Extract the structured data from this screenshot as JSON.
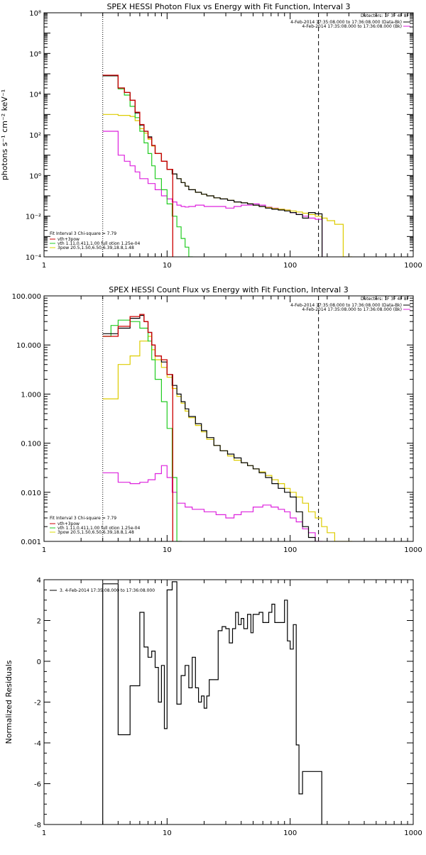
{
  "chart_data": [
    {
      "type": "line",
      "title": "SPEX HESSI Photon Flux vs Energy with Fit Function, Interval 3",
      "ylabel": "photons s⁻¹ cm⁻² keV⁻¹",
      "xscale": "log",
      "yscale": "log",
      "xlim": [
        1,
        1000
      ],
      "ylim": [
        0.0001,
        100000000
      ],
      "xticks": [
        1,
        10,
        100,
        1000
      ],
      "xtick_labels": [
        "1",
        "10",
        "100",
        "1000"
      ],
      "yticks": [
        0.0001,
        0.01,
        1,
        100,
        10000,
        1000000,
        100000000
      ],
      "ytick_labels": [
        "10⁻⁴",
        "10⁻²",
        "10⁰",
        "10²",
        "10⁴",
        "10⁶",
        "10⁸"
      ],
      "header": {
        "detectors": "Detectors: 1F 3F 4F 8F",
        "lines": [
          {
            "text": "4-Feb-2014 17:35:08.000 to 17:36:08.000 (Data-Bk)",
            "color": "#000000"
          },
          {
            "text": "4-Feb-2014 17:35:08.000 to 17:36:08.000 (Bk)",
            "color": "#dd22dd"
          }
        ]
      },
      "legend": {
        "title": "Fit Interval 3   Chi-square = 7.79",
        "entries": [
          {
            "text": "vth+3pow",
            "color": "#cc0000"
          },
          {
            "text": "vth 1.11,0.411,1.00  full otion 1.25e-04",
            "color": "#22cc22"
          },
          {
            "text": "3pow 20.5,1.50,6.50,6.39,18.8,1.48",
            "color": "#dddd00"
          }
        ]
      },
      "vlines": [
        {
          "x": 3,
          "style": "dotted",
          "color": "#000000"
        },
        {
          "x": 170,
          "style": "dashed",
          "color": "#000000"
        }
      ],
      "series": [
        {
          "role": "data",
          "color": "#000000",
          "step": true,
          "x": [
            3,
            3.5,
            4,
            4.5,
            5,
            5.5,
            6,
            6.5,
            7,
            7.5,
            8,
            9,
            10,
            11,
            12,
            13,
            14,
            15,
            17,
            19,
            21,
            24,
            27,
            31,
            35,
            40,
            45,
            50,
            56,
            63,
            71,
            80,
            90,
            100,
            112,
            126,
            141,
            160
          ],
          "y": [
            80000,
            80000,
            20000,
            12000,
            5000,
            1200,
            300,
            150,
            80,
            30,
            12,
            5,
            2,
            1.2,
            0.7,
            0.45,
            0.3,
            0.2,
            0.15,
            0.12,
            0.1,
            0.08,
            0.07,
            0.06,
            0.05,
            0.045,
            0.04,
            0.035,
            0.03,
            0.025,
            0.022,
            0.02,
            0.018,
            0.015,
            0.012,
            0.008,
            0.015,
            0.013
          ]
        },
        {
          "role": "fit-total",
          "name": "vth+3pow",
          "color": "#cc0000",
          "step": true,
          "x": [
            3,
            3.5,
            4,
            4.5,
            5,
            5.5,
            6,
            6.5,
            7,
            7.5,
            8,
            9,
            10
          ],
          "y": [
            85000,
            85000,
            20000,
            12000,
            5000,
            1300,
            320,
            150,
            70,
            30,
            12,
            5,
            2
          ]
        },
        {
          "role": "fit-thermal",
          "name": "vth",
          "color": "#22cc22",
          "step": true,
          "x": [
            3,
            3.5,
            4,
            4.5,
            5,
            5.5,
            6,
            6.5,
            7,
            7.5,
            8,
            9,
            10,
            11,
            12,
            13,
            14,
            15
          ],
          "y": [
            80000,
            80000,
            18000,
            9000,
            2500,
            700,
            150,
            40,
            12,
            3,
            0.7,
            0.2,
            0.04,
            0.01,
            0.003,
            0.0008,
            0.0003,
            0.0001
          ]
        },
        {
          "role": "fit-nonthermal",
          "name": "3pow",
          "color": "#ddcc00",
          "step": true,
          "x": [
            3,
            4,
            5,
            5.5,
            6,
            6.5,
            7,
            7.5,
            8,
            9,
            10,
            11,
            12,
            13,
            14,
            15,
            17,
            19,
            21,
            24,
            27,
            31,
            35,
            40,
            45,
            50,
            56,
            63,
            71,
            80,
            90,
            100,
            112,
            126,
            141,
            160,
            180,
            200,
            230,
            270
          ],
          "y": [
            1000,
            900,
            800,
            500,
            200,
            120,
            60,
            28,
            12,
            5,
            2,
            1.2,
            0.7,
            0.45,
            0.3,
            0.2,
            0.15,
            0.12,
            0.1,
            0.08,
            0.07,
            0.06,
            0.05,
            0.045,
            0.04,
            0.035,
            0.03,
            0.027,
            0.024,
            0.022,
            0.02,
            0.018,
            0.016,
            0.014,
            0.012,
            0.01,
            0.008,
            0.006,
            0.004,
            0.0001
          ]
        },
        {
          "role": "background",
          "color": "#dd22dd",
          "step": true,
          "x": [
            3,
            3.5,
            4,
            4.5,
            5,
            5.5,
            6,
            7,
            8,
            9,
            10,
            11,
            12,
            13,
            14,
            15,
            17,
            20,
            25,
            30,
            35,
            40,
            50,
            56,
            63,
            71,
            80,
            90,
            100,
            112,
            126,
            141,
            160
          ],
          "y": [
            150,
            150,
            10,
            5,
            3,
            1.5,
            0.7,
            0.4,
            0.2,
            0.1,
            0.07,
            0.05,
            0.035,
            0.03,
            0.028,
            0.03,
            0.035,
            0.03,
            0.03,
            0.025,
            0.03,
            0.035,
            0.04,
            0.035,
            0.028,
            0.025,
            0.022,
            0.02,
            0.015,
            0.012,
            0.01,
            0.008,
            0.007
          ]
        }
      ]
    },
    {
      "type": "line",
      "title": "SPEX HESSI Count Flux vs Energy with Fit Function, Interval 3",
      "ylabel": "",
      "xscale": "log",
      "yscale": "log",
      "xlim": [
        1,
        1000
      ],
      "ylim": [
        0.001,
        100
      ],
      "xticks": [
        1,
        10,
        100,
        1000
      ],
      "xtick_labels": [
        "1",
        "10",
        "100",
        "1000"
      ],
      "yticks": [
        0.001,
        0.01,
        0.1,
        1,
        10,
        100
      ],
      "ytick_labels": [
        "0.001",
        "0.010",
        "0.100",
        "1.000",
        "10.000",
        "100.000"
      ],
      "header": {
        "detectors": "Detectors: 1F 3F 4F 8F",
        "lines": [
          {
            "text": "4-Feb-2014 17:35:08.000 to 17:36:08.000 (Data-Bk)",
            "color": "#000000"
          },
          {
            "text": "4-Feb-2014 17:35:08.000 to 17:36:08.000 (Bk)",
            "color": "#dd22dd"
          }
        ]
      },
      "legend": {
        "title": "Fit Interval 3   Chi-square = 7.79",
        "entries": [
          {
            "text": "vth+3pow",
            "color": "#cc0000"
          },
          {
            "text": "vth 1.11,0.411,1.00  full otion 1.25e-04",
            "color": "#22cc22"
          },
          {
            "text": "3pow 20.5,1.50,6.50,6.39,18.8,1.48",
            "color": "#dddd00"
          }
        ]
      },
      "vlines": [
        {
          "x": 3,
          "style": "dotted",
          "color": "#000000"
        },
        {
          "x": 170,
          "style": "dashed",
          "color": "#000000"
        }
      ],
      "series": [
        {
          "role": "data",
          "color": "#000000",
          "step": true,
          "x": [
            3,
            4,
            5,
            6,
            6.5,
            7,
            7.5,
            8,
            9,
            10,
            11,
            12,
            13,
            14,
            15,
            17,
            19,
            21,
            24,
            27,
            31,
            35,
            40,
            45,
            50,
            56,
            63,
            71,
            80,
            90,
            100,
            112,
            126,
            141,
            160
          ],
          "y": [
            17,
            22,
            35,
            40,
            30,
            18,
            10,
            6,
            4.5,
            2.5,
            1.5,
            1,
            0.7,
            0.5,
            0.35,
            0.25,
            0.18,
            0.13,
            0.09,
            0.07,
            0.06,
            0.05,
            0.04,
            0.035,
            0.03,
            0.025,
            0.02,
            0.015,
            0.012,
            0.01,
            0.008,
            0.004,
            0.002,
            0.0012,
            0.0008
          ]
        },
        {
          "role": "fit-total",
          "name": "vth+3pow",
          "color": "#cc0000",
          "step": true,
          "x": [
            3,
            4,
            5,
            6,
            6.5,
            7,
            7.5,
            8,
            9,
            10
          ],
          "y": [
            15,
            24,
            38,
            42,
            30,
            18,
            10,
            6,
            5,
            2.5
          ]
        },
        {
          "role": "fit-thermal",
          "name": "vth",
          "color": "#22cc22",
          "step": true,
          "x": [
            3,
            3.5,
            4,
            5,
            6,
            7,
            7.5,
            8,
            9,
            10,
            11,
            12
          ],
          "y": [
            15,
            25,
            32,
            30,
            22,
            12,
            5,
            2,
            0.7,
            0.2,
            0.02,
            0.001
          ]
        },
        {
          "role": "fit-nonthermal",
          "name": "3pow",
          "color": "#ddcc00",
          "step": true,
          "x": [
            3,
            4,
            5,
            6,
            7,
            7.5,
            8,
            9,
            10,
            11,
            12,
            13,
            14,
            15,
            17,
            19,
            21,
            24,
            27,
            31,
            35,
            40,
            45,
            50,
            56,
            63,
            71,
            80,
            90,
            100,
            112,
            126,
            141,
            160,
            180,
            200,
            230,
            270
          ],
          "y": [
            0.8,
            4,
            6,
            12,
            15,
            8,
            5,
            3.5,
            2.2,
            1.3,
            0.9,
            0.65,
            0.45,
            0.33,
            0.23,
            0.17,
            0.12,
            0.09,
            0.07,
            0.055,
            0.045,
            0.04,
            0.035,
            0.03,
            0.026,
            0.022,
            0.018,
            0.015,
            0.012,
            0.01,
            0.008,
            0.006,
            0.004,
            0.003,
            0.002,
            0.0015,
            0.001,
            0.001
          ]
        },
        {
          "role": "background",
          "color": "#dd22dd",
          "step": true,
          "x": [
            3,
            4,
            5,
            6,
            7,
            8,
            9,
            10,
            11,
            12,
            14,
            16,
            20,
            25,
            30,
            35,
            40,
            50,
            60,
            70,
            80,
            90,
            100,
            112,
            126,
            141,
            160
          ],
          "y": [
            0.025,
            0.016,
            0.015,
            0.016,
            0.018,
            0.024,
            0.035,
            0.02,
            0.01,
            0.006,
            0.005,
            0.0045,
            0.004,
            0.0035,
            0.003,
            0.0035,
            0.004,
            0.005,
            0.0055,
            0.005,
            0.0045,
            0.004,
            0.003,
            0.0025,
            0.0018,
            0.0015,
            0.001
          ]
        }
      ]
    },
    {
      "type": "line",
      "title": "",
      "ylabel": "Normalized Residuals",
      "xscale": "log",
      "yscale": "linear",
      "xlim": [
        1,
        1000
      ],
      "ylim": [
        -8,
        4
      ],
      "xticks": [
        1,
        10,
        100,
        1000
      ],
      "xtick_labels": [
        "1",
        "10",
        "100",
        "1000"
      ],
      "yticks": [
        -8,
        -6,
        -4,
        -2,
        0,
        2,
        4
      ],
      "ytick_labels": [
        "-8",
        "-6",
        "-4",
        "-2",
        "0",
        "2",
        "4"
      ],
      "legend": {
        "title": "",
        "entries": [
          {
            "text": "3.  4-Feb-2014  17:35:08.000 to 17:36:08.000",
            "color": "#000000"
          }
        ]
      },
      "series": [
        {
          "role": "residuals",
          "color": "#000000",
          "step": true,
          "x": [
            3,
            3.5,
            4,
            4.5,
            5,
            5.5,
            6,
            6.5,
            7,
            7.5,
            8,
            8.5,
            9,
            9.5,
            10,
            11,
            12,
            13,
            14,
            15,
            16,
            17,
            18,
            19,
            20,
            21,
            22,
            24,
            26,
            28,
            30,
            32,
            34,
            36,
            38,
            40,
            42,
            45,
            48,
            50,
            56,
            60,
            63,
            67,
            71,
            75,
            80,
            85,
            90,
            95,
            100,
            106,
            112,
            118,
            126,
            134,
            141,
            150,
            160,
            170
          ],
          "y": [
            3.8,
            3.8,
            -3.6,
            -3.6,
            -1.2,
            -1.2,
            2.4,
            0.7,
            0.2,
            0.5,
            -0.3,
            -2.0,
            -0.2,
            -3.3,
            3.5,
            3.9,
            -2.1,
            -0.7,
            -0.2,
            -1.3,
            0.2,
            -1.3,
            -2.0,
            -1.7,
            -2.3,
            -1.7,
            -0.9,
            -0.9,
            1.5,
            1.7,
            1.6,
            0.9,
            1.6,
            2.4,
            1.8,
            2.1,
            1.6,
            2.3,
            1.4,
            2.3,
            2.4,
            1.9,
            1.9,
            2.4,
            2.8,
            1.9,
            1.9,
            1.9,
            3.0,
            1.0,
            0.6,
            1.8,
            -4.1,
            -6.5,
            -5.4,
            -5.4,
            -5.4,
            -5.4,
            -5.4,
            -5.4
          ]
        }
      ]
    }
  ]
}
